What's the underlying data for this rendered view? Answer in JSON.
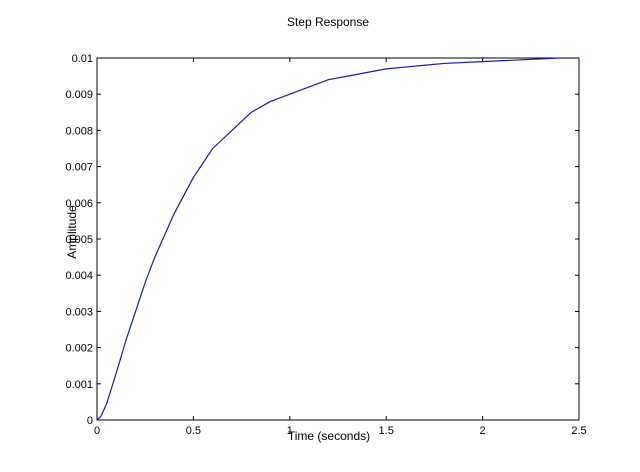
{
  "chart_data": {
    "type": "line",
    "title": "Step Response",
    "xlabel": "Time (seconds)",
    "ylabel": "Amplitude",
    "xlim": [
      0,
      2.5
    ],
    "ylim": [
      0,
      0.01
    ],
    "grid": false,
    "x_ticks": [
      "0",
      "0.5",
      "1",
      "1.5",
      "2",
      "2.5"
    ],
    "y_ticks": [
      "0",
      "0.001",
      "0.002",
      "0.003",
      "0.004",
      "0.005",
      "0.006",
      "0.007",
      "0.008",
      "0.009",
      "0.01"
    ],
    "series": [
      {
        "color": "#1a1ab0",
        "x": [
          0,
          0.02,
          0.05,
          0.1,
          0.15,
          0.2,
          0.25,
          0.3,
          0.35,
          0.4,
          0.45,
          0.5,
          0.6,
          0.7,
          0.8,
          0.9,
          1.0,
          1.1,
          1.2,
          1.3,
          1.4,
          1.5,
          1.6,
          1.7,
          1.8,
          2.0,
          2.2,
          2.4,
          2.5
        ],
        "y": [
          0,
          0.0001,
          0.00045,
          0.0013,
          0.0022,
          0.003,
          0.0038,
          0.0045,
          0.0051,
          0.0057,
          0.0062,
          0.0067,
          0.0075,
          0.008,
          0.0085,
          0.0088,
          0.009,
          0.0092,
          0.0094,
          0.0095,
          0.0096,
          0.0097,
          0.00975,
          0.0098,
          0.00985,
          0.0099,
          0.00995,
          0.01,
          0.01
        ]
      }
    ]
  }
}
